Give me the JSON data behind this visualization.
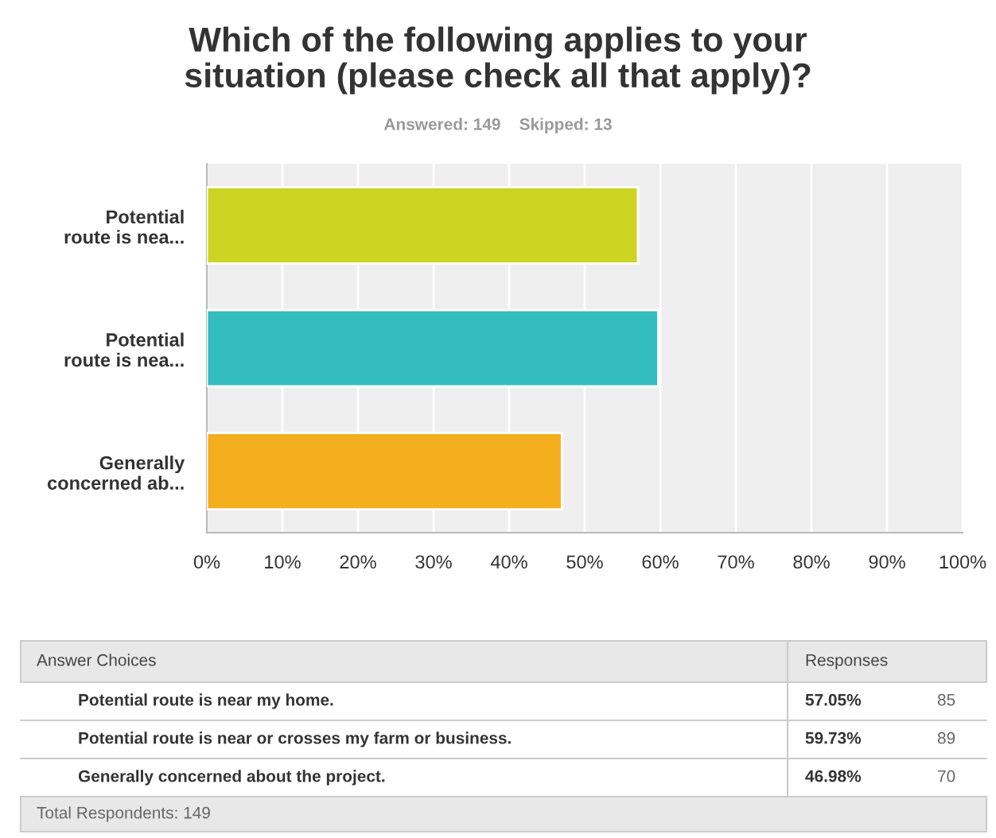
{
  "chart_data": {
    "type": "bar",
    "orientation": "horizontal",
    "title": "Which of the following applies to your\nsituation (please check all that apply)?",
    "subtitle": "Answered: 149    Skipped: 13",
    "categories": [
      "Potential\nroute is nea...",
      "Potential\nroute is nea...",
      "Generally\nconcerned ab..."
    ],
    "values": [
      57.05,
      59.73,
      46.98
    ],
    "colors": [
      "#cdd424",
      "#33bdbf",
      "#f5ae1e"
    ],
    "xlim": [
      0,
      100
    ],
    "xticks": [
      {
        "value": 0,
        "label": "0%"
      },
      {
        "value": 10,
        "label": "10%"
      },
      {
        "value": 20,
        "label": "20%"
      },
      {
        "value": 30,
        "label": "30%"
      },
      {
        "value": 40,
        "label": "40%"
      },
      {
        "value": 50,
        "label": "50%"
      },
      {
        "value": 60,
        "label": "60%"
      },
      {
        "value": 70,
        "label": "70%"
      },
      {
        "value": 80,
        "label": "80%"
      },
      {
        "value": 90,
        "label": "90%"
      },
      {
        "value": 100,
        "label": "100%"
      }
    ],
    "grid": "x",
    "annotations": [
      "Answer Choices",
      "Responses",
      "Potential route is near my home.",
      "Potential route is near or crosses my farm or business.",
      "Generally concerned about the project.",
      "57.05%",
      "59.73%",
      "46.98%",
      "85",
      "89",
      "70",
      "Total Respondents: 149"
    ]
  }
}
